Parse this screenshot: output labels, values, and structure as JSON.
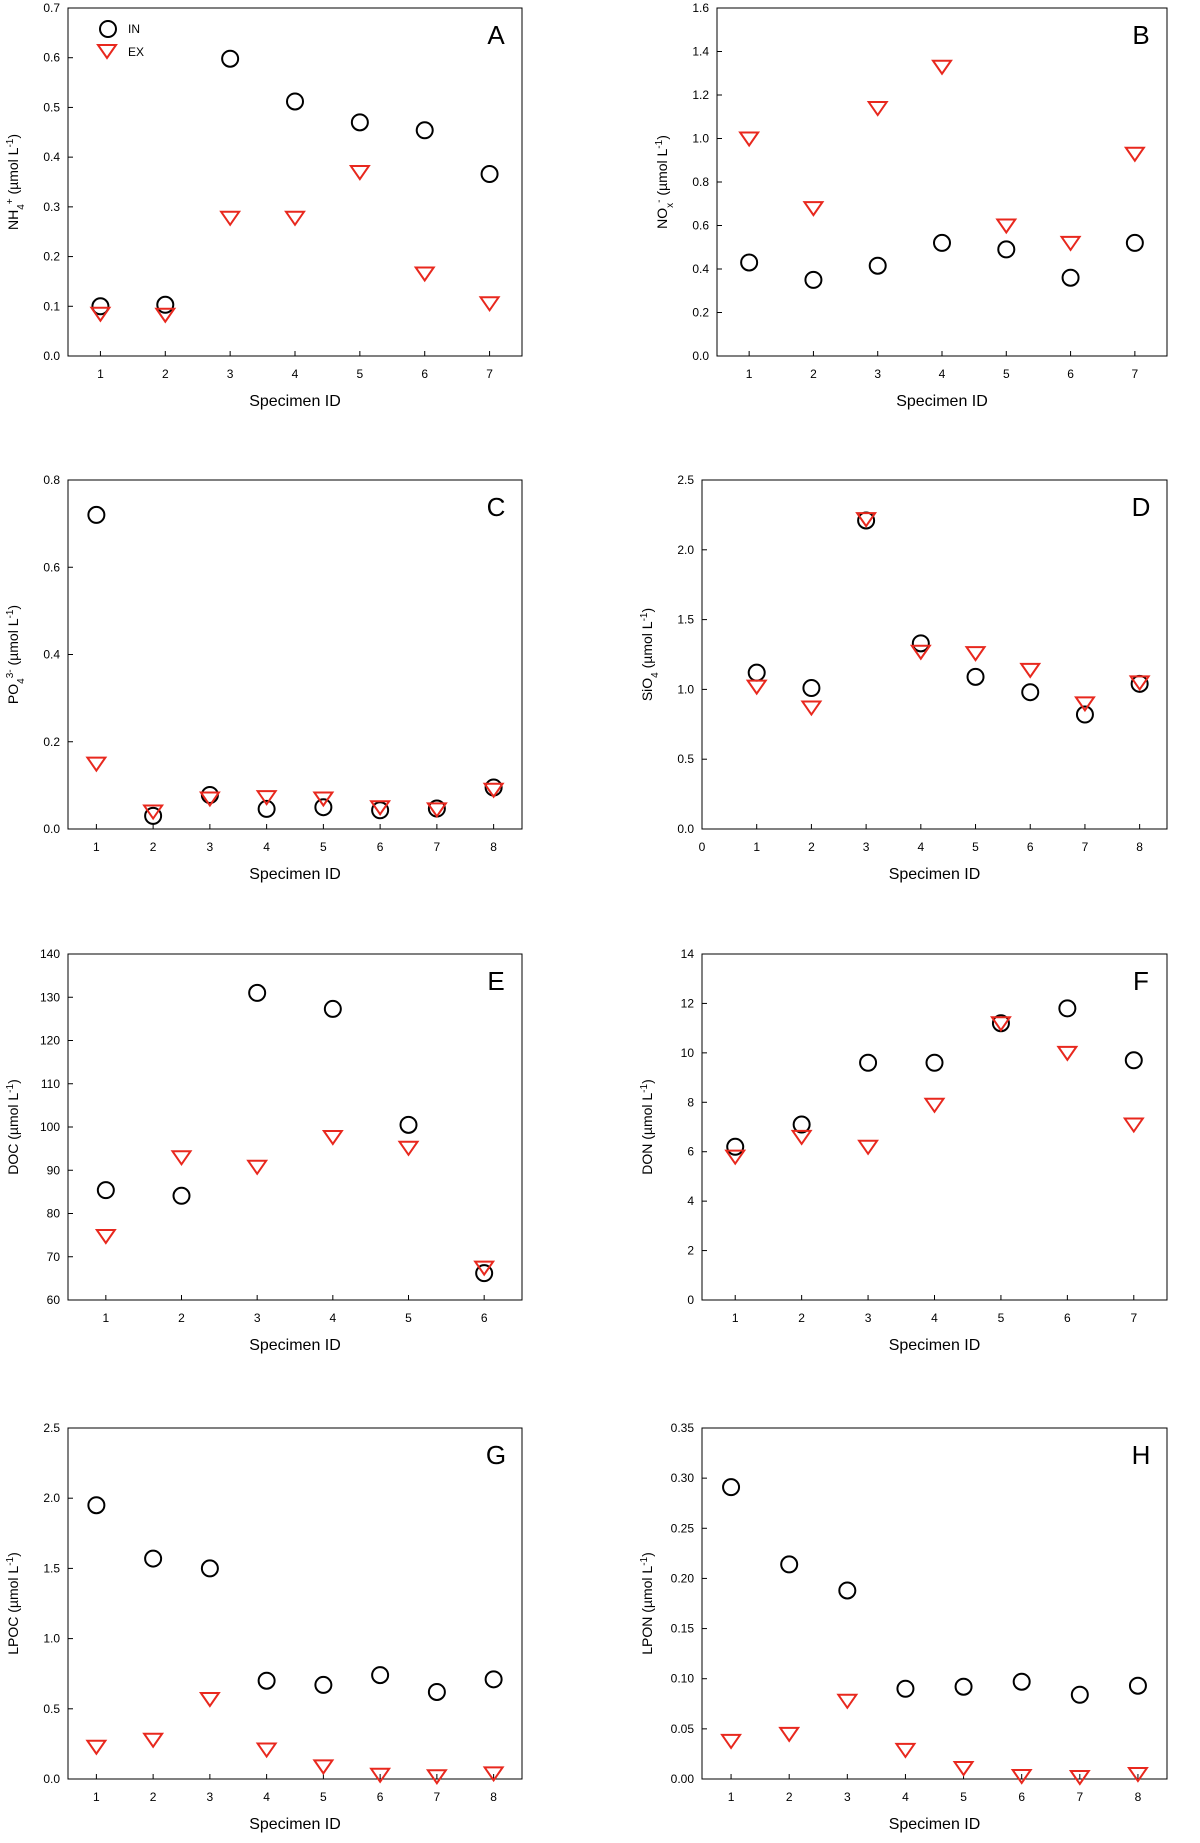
{
  "figure": {
    "legend": {
      "in_label": "IN",
      "ex_label": "EX",
      "in_color": "#000000",
      "ex_color": "#e8281e"
    }
  },
  "chart_data": [
    {
      "panel": "A",
      "type": "scatter",
      "ylabel": [
        "NH",
        {
          "sub": "4"
        },
        {
          "sup": "+"
        },
        " (µmol L",
        {
          "sup": "-1"
        },
        ")"
      ],
      "xlabel": "Specimen ID",
      "xlim": [
        0.5,
        7.5
      ],
      "xticks": [
        1,
        2,
        3,
        4,
        5,
        6,
        7
      ],
      "ylim": [
        0,
        0.7
      ],
      "yticks": [
        0.0,
        0.1,
        0.2,
        0.3,
        0.4,
        0.5,
        0.6,
        0.7
      ],
      "ydecimals": 1,
      "series": [
        {
          "name": "IN",
          "x": [
            1,
            2,
            3,
            4,
            5,
            6,
            7
          ],
          "y": [
            0.1,
            0.103,
            0.598,
            0.512,
            0.47,
            0.454,
            0.366
          ]
        },
        {
          "name": "EX",
          "x": [
            1,
            2,
            3,
            4,
            5,
            6,
            7
          ],
          "y": [
            0.085,
            0.083,
            0.278,
            0.278,
            0.37,
            0.166,
            0.106
          ]
        }
      ]
    },
    {
      "panel": "B",
      "type": "scatter",
      "ylabel": [
        "NO",
        {
          "sub": "x"
        },
        {
          "sup": "-"
        },
        " (µmol L",
        {
          "sup": "-1"
        },
        ")"
      ],
      "xlabel": "Specimen ID",
      "xlim": [
        0.5,
        7.5
      ],
      "xticks": [
        1,
        2,
        3,
        4,
        5,
        6,
        7
      ],
      "ylim": [
        0,
        1.6
      ],
      "yticks": [
        0.0,
        0.2,
        0.4,
        0.6,
        0.8,
        1.0,
        1.2,
        1.4,
        1.6
      ],
      "ydecimals": 1,
      "series": [
        {
          "name": "IN",
          "x": [
            1,
            2,
            3,
            4,
            5,
            6,
            7
          ],
          "y": [
            0.43,
            0.35,
            0.415,
            0.52,
            0.49,
            0.36,
            0.52
          ]
        },
        {
          "name": "EX",
          "x": [
            1,
            2,
            3,
            4,
            5,
            6,
            7
          ],
          "y": [
            1.0,
            0.68,
            1.14,
            1.33,
            0.6,
            0.52,
            0.93
          ]
        }
      ]
    },
    {
      "panel": "C",
      "type": "scatter",
      "ylabel": [
        "PO",
        {
          "sub": "4"
        },
        {
          "sup": "3-"
        },
        " (µmol L",
        {
          "sup": "-1"
        },
        ")"
      ],
      "xlabel": "Specimen ID",
      "xlim": [
        0.5,
        8.5
      ],
      "xticks": [
        1,
        2,
        3,
        4,
        5,
        6,
        7,
        8
      ],
      "ylim": [
        0,
        0.8
      ],
      "yticks": [
        0.0,
        0.2,
        0.4,
        0.6,
        0.8
      ],
      "ydecimals": 1,
      "series": [
        {
          "name": "IN",
          "x": [
            1,
            2,
            3,
            4,
            5,
            6,
            7,
            8
          ],
          "y": [
            0.72,
            0.03,
            0.078,
            0.046,
            0.05,
            0.043,
            0.047,
            0.095
          ]
        },
        {
          "name": "EX",
          "x": [
            1,
            2,
            3,
            4,
            5,
            6,
            7,
            8
          ],
          "y": [
            0.15,
            0.04,
            0.07,
            0.073,
            0.07,
            0.05,
            0.045,
            0.09
          ]
        }
      ]
    },
    {
      "panel": "D",
      "type": "scatter",
      "ylabel": [
        "SiO",
        {
          "sub": "4"
        },
        "  (µmol L",
        {
          "sup": "-1"
        },
        ")"
      ],
      "xlabel": "Specimen ID",
      "xlim": [
        0,
        8.5
      ],
      "xticks": [
        0,
        1,
        2,
        3,
        4,
        5,
        6,
        7,
        8
      ],
      "ylim": [
        0,
        2.5
      ],
      "yticks": [
        0.0,
        0.5,
        1.0,
        1.5,
        2.0,
        2.5
      ],
      "ydecimals": 1,
      "series": [
        {
          "name": "IN",
          "x": [
            1,
            2,
            3,
            4,
            5,
            6,
            7,
            8
          ],
          "y": [
            1.12,
            1.01,
            2.21,
            1.33,
            1.09,
            0.98,
            0.82,
            1.04
          ]
        },
        {
          "name": "EX",
          "x": [
            1,
            2,
            3,
            4,
            5,
            6,
            7,
            8
          ],
          "y": [
            1.02,
            0.87,
            2.22,
            1.27,
            1.26,
            1.14,
            0.9,
            1.05
          ]
        }
      ]
    },
    {
      "panel": "E",
      "type": "scatter",
      "ylabel": [
        "DOC (µmol L",
        {
          "sup": "-1"
        },
        ")"
      ],
      "xlabel": "Specimen ID",
      "xlim": [
        0.5,
        6.5
      ],
      "xticks": [
        1,
        2,
        3,
        4,
        5,
        6
      ],
      "ylim": [
        60,
        140
      ],
      "yticks": [
        60,
        70,
        80,
        90,
        100,
        110,
        120,
        130,
        140
      ],
      "ydecimals": 0,
      "series": [
        {
          "name": "IN",
          "x": [
            1,
            2,
            3,
            4,
            5,
            6
          ],
          "y": [
            85.4,
            84.1,
            131.0,
            127.3,
            100.5,
            66.2
          ]
        },
        {
          "name": "EX",
          "x": [
            1,
            2,
            3,
            4,
            5,
            6
          ],
          "y": [
            74.8,
            93.0,
            90.8,
            97.7,
            95.2,
            67.5
          ]
        }
      ]
    },
    {
      "panel": "F",
      "type": "scatter",
      "ylabel": [
        "DON (µmol L",
        {
          "sup": "-1"
        },
        ")"
      ],
      "xlabel": "Specimen ID",
      "xlim": [
        0.5,
        7.5
      ],
      "xticks": [
        1,
        2,
        3,
        4,
        5,
        6,
        7
      ],
      "ylim": [
        0,
        14
      ],
      "yticks": [
        0,
        2,
        4,
        6,
        8,
        10,
        12,
        14
      ],
      "ydecimals": 0,
      "series": [
        {
          "name": "IN",
          "x": [
            1,
            2,
            3,
            4,
            5,
            6,
            7
          ],
          "y": [
            6.2,
            7.1,
            9.6,
            9.6,
            11.2,
            11.8,
            9.7
          ]
        },
        {
          "name": "EX",
          "x": [
            1,
            2,
            3,
            4,
            5,
            6,
            7
          ],
          "y": [
            5.8,
            6.6,
            6.2,
            7.9,
            11.2,
            10.0,
            7.1
          ]
        }
      ]
    },
    {
      "panel": "G",
      "type": "scatter",
      "ylabel": [
        "LPOC (µmol L",
        {
          "sup": "-1"
        },
        ")"
      ],
      "xlabel": "Specimen ID",
      "xlim": [
        0.5,
        8.5
      ],
      "xticks": [
        1,
        2,
        3,
        4,
        5,
        6,
        7,
        8
      ],
      "ylim": [
        0,
        2.5
      ],
      "yticks": [
        0.0,
        0.5,
        1.0,
        1.5,
        2.0,
        2.5
      ],
      "ydecimals": 1,
      "series": [
        {
          "name": "IN",
          "x": [
            1,
            2,
            3,
            4,
            5,
            6,
            7,
            8
          ],
          "y": [
            1.95,
            1.57,
            1.5,
            0.7,
            0.67,
            0.74,
            0.62,
            0.71
          ]
        },
        {
          "name": "EX",
          "x": [
            1,
            2,
            3,
            4,
            5,
            6,
            7,
            8
          ],
          "y": [
            0.23,
            0.28,
            0.57,
            0.21,
            0.09,
            0.03,
            0.02,
            0.04
          ]
        }
      ]
    },
    {
      "panel": "H",
      "type": "scatter",
      "ylabel": [
        "LPON (µmol L",
        {
          "sup": "-1"
        },
        ")"
      ],
      "xlabel": "Specimen ID",
      "xlim": [
        0.5,
        8.5
      ],
      "xticks": [
        1,
        2,
        3,
        4,
        5,
        6,
        7,
        8
      ],
      "ylim": [
        0,
        0.35
      ],
      "yticks": [
        0.0,
        0.05,
        0.1,
        0.15,
        0.2,
        0.25,
        0.3,
        0.35
      ],
      "ydecimals": 2,
      "series": [
        {
          "name": "IN",
          "x": [
            1,
            2,
            3,
            4,
            5,
            6,
            7,
            8
          ],
          "y": [
            0.291,
            0.214,
            0.188,
            0.09,
            0.092,
            0.097,
            0.084,
            0.093
          ]
        },
        {
          "name": "EX",
          "x": [
            1,
            2,
            3,
            4,
            5,
            6,
            7,
            8
          ],
          "y": [
            0.038,
            0.045,
            0.078,
            0.029,
            0.011,
            0.003,
            0.002,
            0.005
          ]
        }
      ]
    }
  ]
}
